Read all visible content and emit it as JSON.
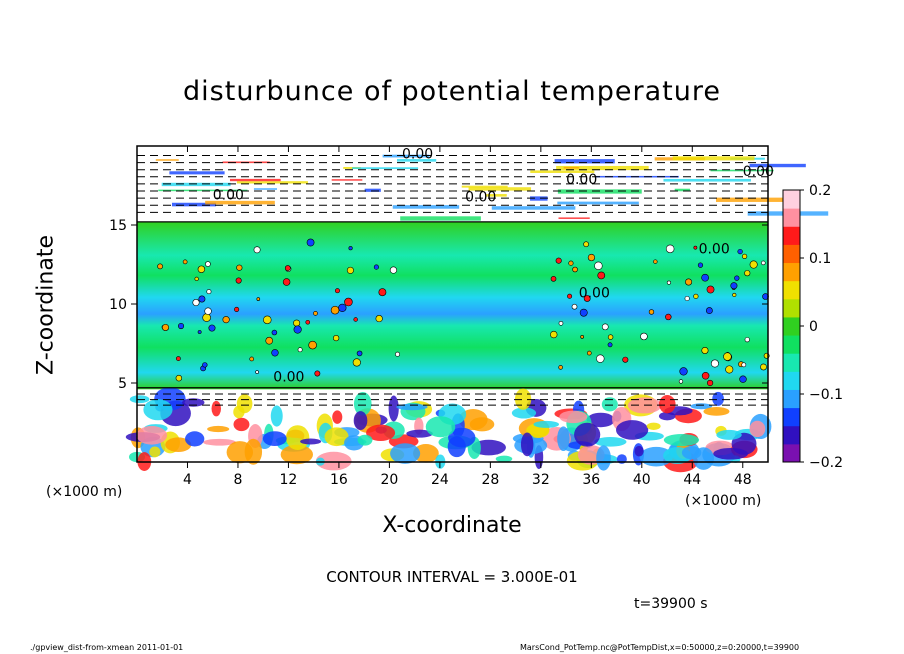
{
  "chart_data": {
    "type": "heatmap",
    "title": "disturbunce of potential temperature",
    "xlabel": "X-coordinate",
    "ylabel": "Z-coordinate",
    "x_unit_label": "(×1000 m)",
    "xlim": [
      0,
      50
    ],
    "ylim": [
      0,
      20
    ],
    "x_ticks": [
      4,
      8,
      12,
      16,
      20,
      24,
      28,
      32,
      36,
      40,
      44,
      48
    ],
    "y_ticks": [
      5,
      10,
      15
    ],
    "colorbar": {
      "range": [
        -0.2,
        0.2
      ],
      "ticks": [
        "0.2",
        "0.1",
        "0",
        "−0.1",
        "−0.2"
      ],
      "colors": [
        "#7a10b0",
        "#3010c0",
        "#1040ff",
        "#2aa0ff",
        "#20d8f0",
        "#18e8b0",
        "#10e060",
        "#30d020",
        "#b0e000",
        "#f0e000",
        "#ffa000",
        "#ff6000",
        "#ff1a1a",
        "#ff90a0",
        "#ffd0e0"
      ]
    },
    "contour_labels": [
      "0.00",
      "0.00",
      "0.00",
      "0.00",
      "0.00",
      "0.00",
      "0.00",
      "0.00"
    ],
    "annotations": {
      "contour_interval": "CONTOUR INTERVAL = 3.000E-01",
      "time": "t=39900 s",
      "footer_left": "./gpview_dist-from-xmean  2011-01-01",
      "footer_right": "MarsCond_PotTemp.nc@PotTempDist,x=0:50000,z=0:20000,t=39900"
    },
    "grid": false,
    "legend": "colorbar-right"
  }
}
